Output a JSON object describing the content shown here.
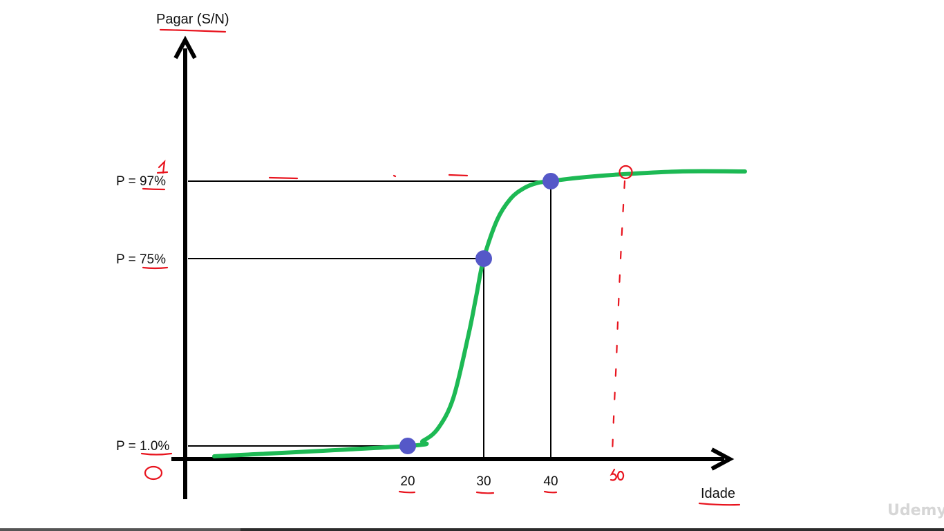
{
  "chart_data": {
    "type": "line",
    "title": "",
    "ylabel": "Pagar (S/N)",
    "xlabel": "Idade",
    "x_ticks": [
      "20",
      "30",
      "40"
    ],
    "y_ticks": [
      "P = 1.0%",
      "P = 75%",
      "P = 97%"
    ],
    "series": [
      {
        "name": "",
        "type": "sigmoid",
        "x": [
          18,
          20,
          22,
          24,
          26,
          28,
          29,
          30,
          32,
          34,
          36,
          38,
          40,
          42,
          45,
          50,
          55
        ],
        "y": [
          0.0,
          0.01,
          0.03,
          0.08,
          0.2,
          0.45,
          0.6,
          0.75,
          0.86,
          0.92,
          0.95,
          0.965,
          0.97,
          0.98,
          0.99,
          1.0,
          1.0
        ]
      }
    ],
    "highlighted_points": [
      {
        "x": 20,
        "y": 0.01,
        "label": "P = 1.0%"
      },
      {
        "x": 30,
        "y": 0.75,
        "label": "P = 75%"
      },
      {
        "x": 40,
        "y": 0.97,
        "label": "P = 97%"
      }
    ],
    "annotations": {
      "handwritten_one": "1",
      "handwritten_zero": "0",
      "handwritten_fifty": "50"
    },
    "colors": {
      "curve": "#1db954",
      "points": "#5558c8",
      "axis": "#000000",
      "annotation": "#e8141e"
    },
    "grid": false
  },
  "watermark": "Udemy",
  "player": {
    "progress": 0.255
  }
}
